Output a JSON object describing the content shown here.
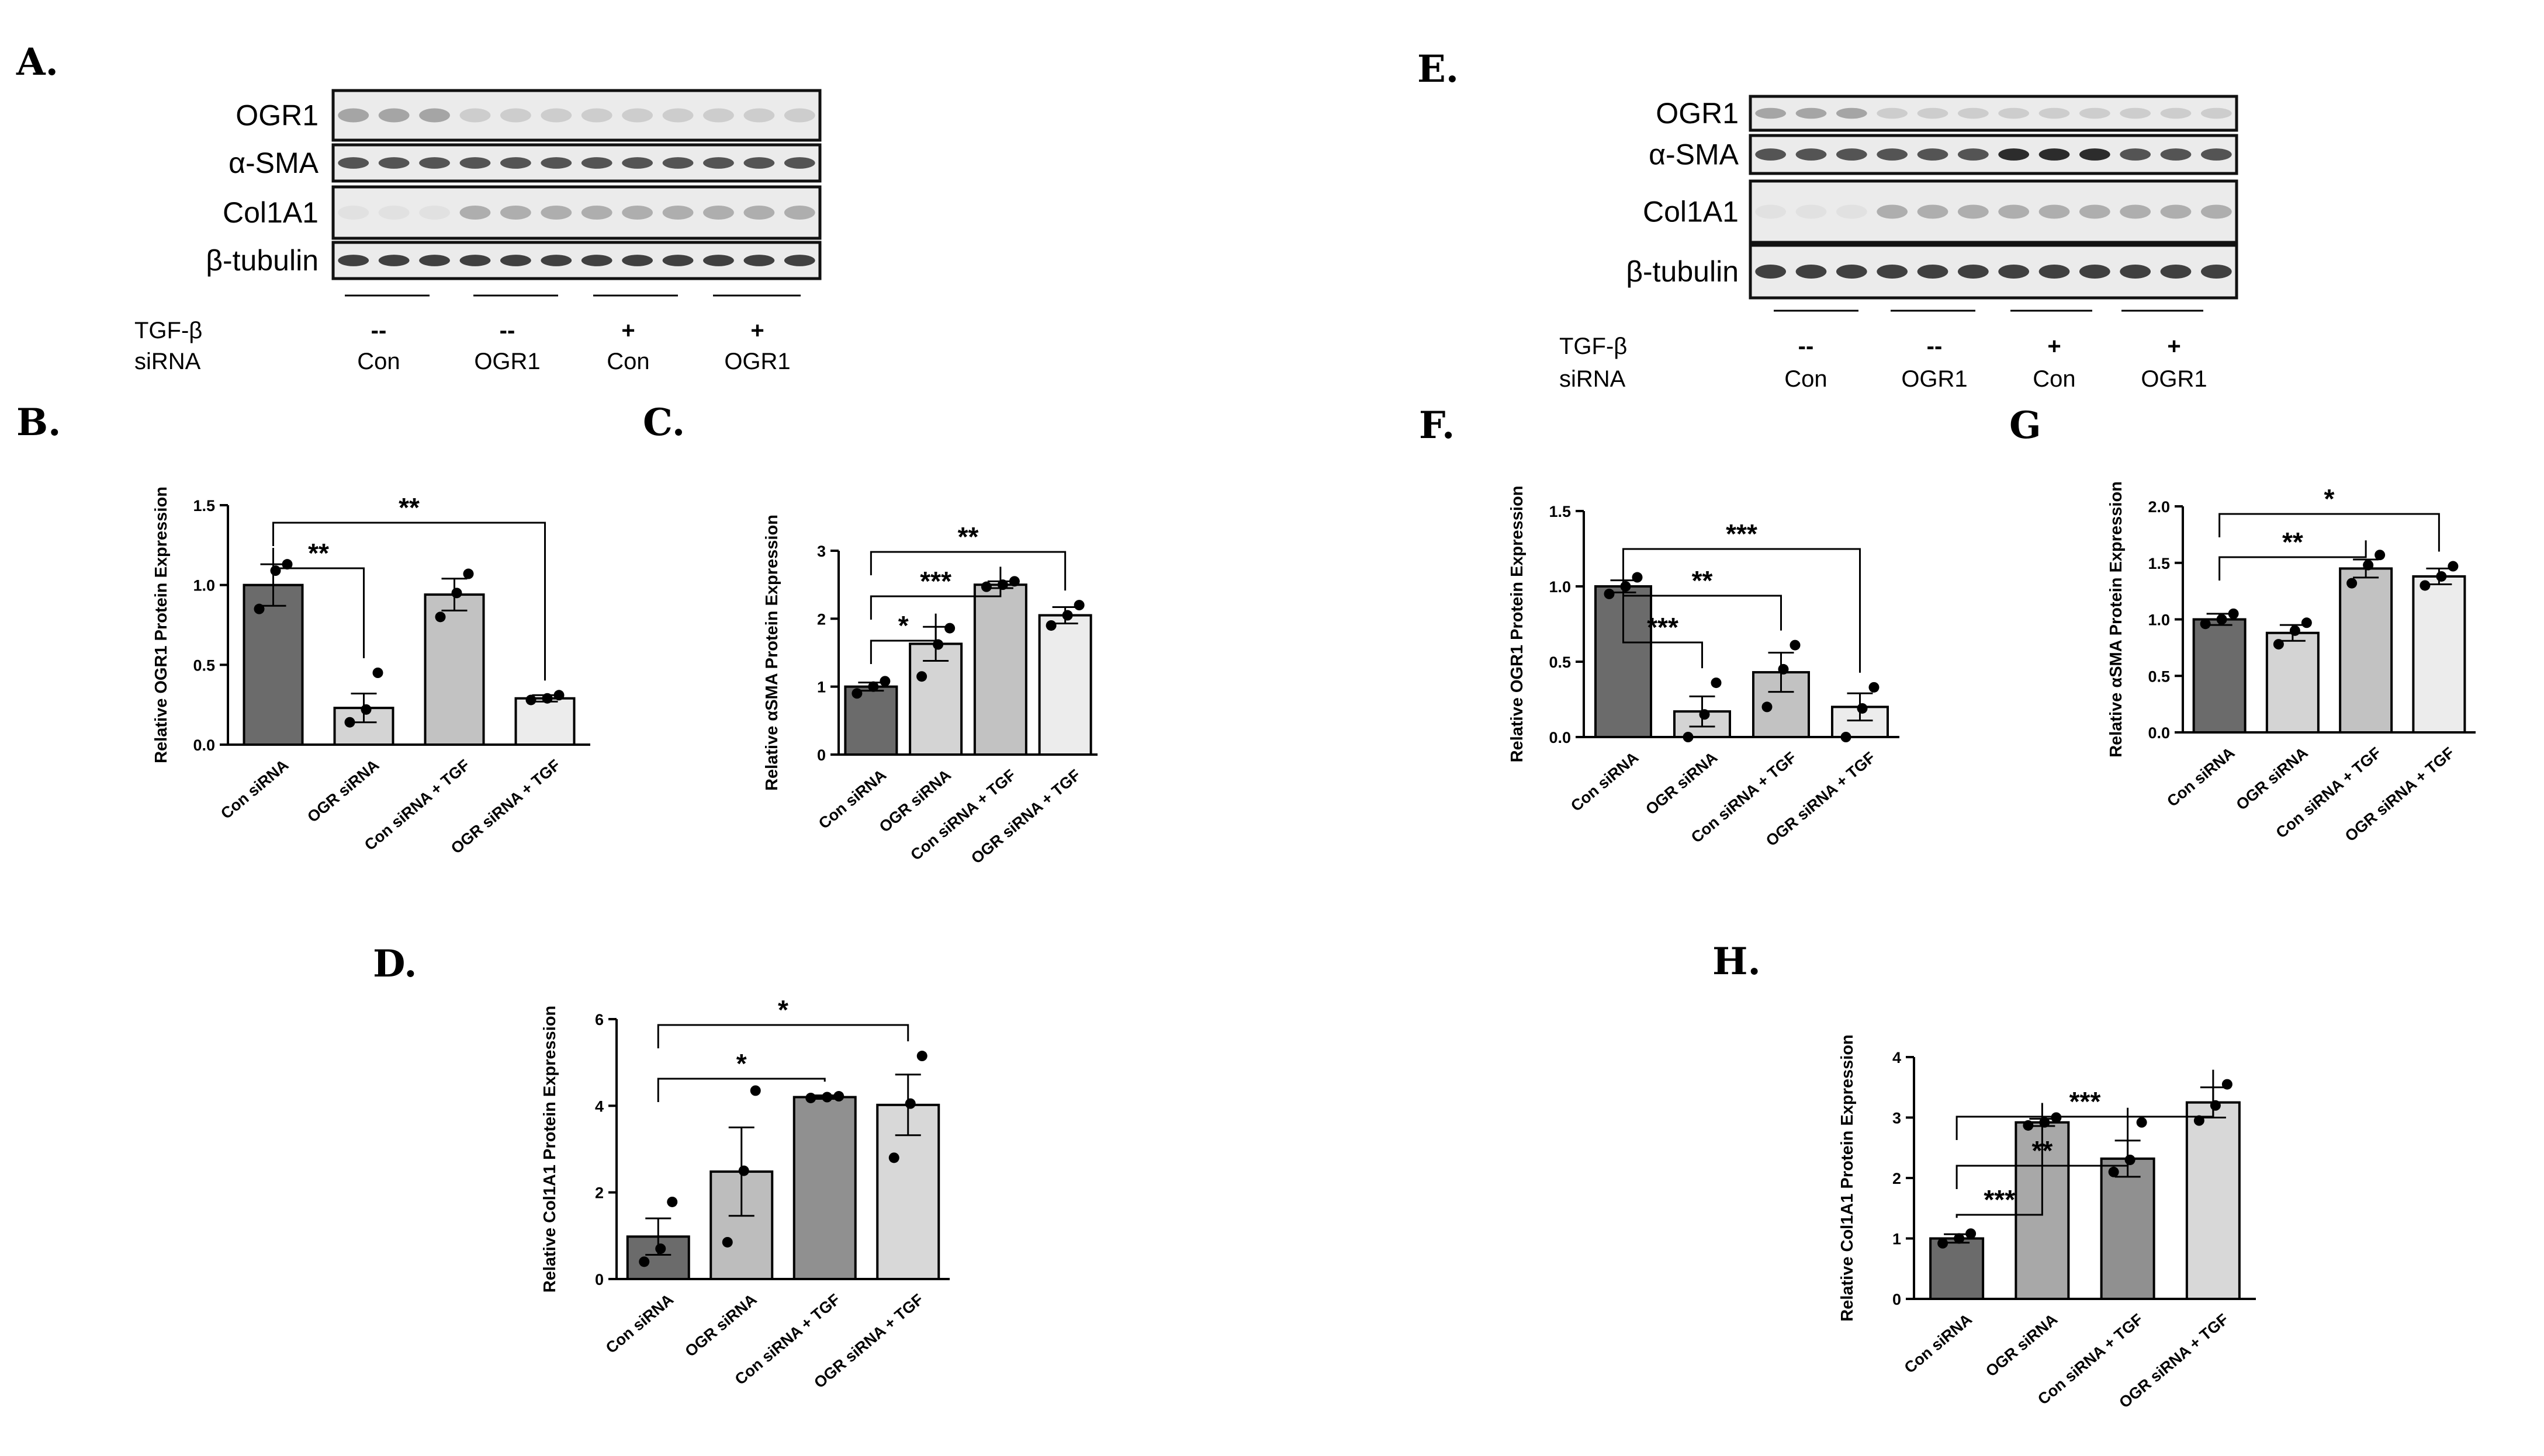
{
  "blots": [
    {
      "panel": "A.",
      "rows": [
        "OGR1",
        "α-SMA",
        "Col1A1",
        "β-tubulin"
      ],
      "condition_labels": [
        "TGF-β",
        "siRNA"
      ],
      "groups": [
        {
          "tgf": "--",
          "sirna": "Con"
        },
        {
          "tgf": "--",
          "sirna": "OGR1"
        },
        {
          "tgf": "+",
          "sirna": "Con"
        },
        {
          "tgf": "+",
          "sirna": "OGR1"
        }
      ]
    },
    {
      "panel": "E.",
      "rows": [
        "OGR1",
        "α-SMA",
        "Col1A1",
        "β-tubulin"
      ],
      "condition_labels": [
        "TGF-β",
        "siRNA"
      ],
      "groups": [
        {
          "tgf": "--",
          "sirna": "Con"
        },
        {
          "tgf": "--",
          "sirna": "OGR1"
        },
        {
          "tgf": "+",
          "sirna": "Con"
        },
        {
          "tgf": "+",
          "sirna": "OGR1"
        }
      ]
    }
  ],
  "chart_data": [
    {
      "panel": "B.",
      "type": "bar",
      "ylabel": "Relative OGR1 Protein Expression",
      "categories": [
        "Con siRNA",
        "OGR siRNA",
        "Con siRNA + TGF",
        "OGR siRNA + TGF"
      ],
      "values": [
        1.0,
        0.23,
        0.94,
        0.29
      ],
      "errors": [
        0.13,
        0.09,
        0.1,
        0.02
      ],
      "points": [
        [
          0.85,
          1.09,
          1.13
        ],
        [
          0.14,
          0.22,
          0.45
        ],
        [
          0.8,
          0.95,
          1.07
        ],
        [
          0.28,
          0.29,
          0.31
        ]
      ],
      "ylim": [
        0,
        1.5
      ],
      "yticks": [
        "0.0",
        "0.5",
        "1.0",
        "1.5"
      ],
      "significance": [
        {
          "from": 0,
          "to": 1,
          "label": "**"
        },
        {
          "from": 0,
          "to": 3,
          "label": "**"
        }
      ],
      "bar_colors": [
        "#6b6b6b",
        "#d4d4d4",
        "#c2c2c2",
        "#ececec"
      ]
    },
    {
      "panel": "C.",
      "type": "bar",
      "ylabel": "Relative αSMA Protein Expression",
      "categories": [
        "Con siRNA",
        "OGR siRNA",
        "Con siRNA + TGF",
        "OGR siRNA + TGF"
      ],
      "values": [
        1.0,
        1.63,
        2.5,
        2.05
      ],
      "errors": [
        0.06,
        0.25,
        0.05,
        0.12
      ],
      "points": [
        [
          0.9,
          1.0,
          1.08
        ],
        [
          1.15,
          1.62,
          1.86
        ],
        [
          2.47,
          2.5,
          2.55
        ],
        [
          1.9,
          2.05,
          2.2
        ]
      ],
      "ylim": [
        0,
        3
      ],
      "yticks": [
        "0",
        "1",
        "2",
        "3"
      ],
      "significance": [
        {
          "from": 0,
          "to": 1,
          "label": "*"
        },
        {
          "from": 0,
          "to": 2,
          "label": "***"
        },
        {
          "from": 0,
          "to": 3,
          "label": "**"
        }
      ],
      "bar_colors": [
        "#6b6b6b",
        "#d4d4d4",
        "#c2c2c2",
        "#ececec"
      ]
    },
    {
      "panel": "D.",
      "type": "bar",
      "ylabel": "Relative Col1A1 Protein Expression",
      "categories": [
        "Con siRNA",
        "OGR siRNA",
        "Con siRNA + TGF",
        "OGR siRNA + TGF"
      ],
      "values": [
        0.98,
        2.48,
        4.2,
        4.02
      ],
      "errors": [
        0.42,
        1.02,
        0.04,
        0.7
      ],
      "points": [
        [
          0.4,
          0.7,
          1.78
        ],
        [
          0.85,
          2.5,
          4.35
        ],
        [
          4.18,
          4.2,
          4.22
        ],
        [
          2.8,
          4.05,
          5.15
        ]
      ],
      "ylim": [
        0,
        6
      ],
      "yticks": [
        "0",
        "2",
        "4",
        "6"
      ],
      "significance": [
        {
          "from": 0,
          "to": 2,
          "label": "*"
        },
        {
          "from": 0,
          "to": 3,
          "label": "*"
        }
      ],
      "bar_colors": [
        "#6b6b6b",
        "#bdbdbd",
        "#909090",
        "#d8d8d8"
      ]
    },
    {
      "panel": "F.",
      "type": "bar",
      "ylabel": "Relative OGR1 Protein Expression",
      "categories": [
        "Con siRNA",
        "OGR siRNA",
        "Con siRNA + TGF",
        "OGR siRNA + TGF"
      ],
      "values": [
        1.0,
        0.17,
        0.43,
        0.2
      ],
      "errors": [
        0.04,
        0.1,
        0.13,
        0.09
      ],
      "points": [
        [
          0.95,
          1.0,
          1.06
        ],
        [
          0.0,
          0.15,
          0.36
        ],
        [
          0.2,
          0.45,
          0.61
        ],
        [
          0.0,
          0.19,
          0.33
        ]
      ],
      "ylim": [
        0,
        1.5
      ],
      "yticks": [
        "0.0",
        "0.5",
        "1.0",
        "1.5"
      ],
      "significance": [
        {
          "from": 0,
          "to": 1,
          "label": "***"
        },
        {
          "from": 0,
          "to": 2,
          "label": "**"
        },
        {
          "from": 0,
          "to": 3,
          "label": "***"
        }
      ],
      "bar_colors": [
        "#6b6b6b",
        "#d4d4d4",
        "#c2c2c2",
        "#ececec"
      ]
    },
    {
      "panel": "G",
      "type": "bar",
      "ylabel": "Relative αSMA Protein Expression",
      "categories": [
        "Con siRNA",
        "OGR siRNA",
        "Con siRNA + TGF",
        "OGR siRNA + TGF"
      ],
      "values": [
        1.0,
        0.88,
        1.45,
        1.38
      ],
      "errors": [
        0.05,
        0.07,
        0.08,
        0.07
      ],
      "points": [
        [
          0.96,
          1.0,
          1.05
        ],
        [
          0.78,
          0.9,
          0.97
        ],
        [
          1.32,
          1.48,
          1.57
        ],
        [
          1.3,
          1.38,
          1.47
        ]
      ],
      "ylim": [
        0,
        2
      ],
      "yticks": [
        "0.0",
        "0.5",
        "1.0",
        "1.5",
        "2.0"
      ],
      "significance": [
        {
          "from": 0,
          "to": 2,
          "label": "**"
        },
        {
          "from": 0,
          "to": 3,
          "label": "*"
        }
      ],
      "bar_colors": [
        "#6b6b6b",
        "#d4d4d4",
        "#c2c2c2",
        "#ececec"
      ]
    },
    {
      "panel": "H.",
      "type": "bar",
      "ylabel": "Relative Col1A1 Protein Expression",
      "categories": [
        "Con siRNA",
        "OGR siRNA",
        "Con siRNA + TGF",
        "OGR siRNA + TGF"
      ],
      "values": [
        1.0,
        2.92,
        2.32,
        3.25
      ],
      "errors": [
        0.07,
        0.06,
        0.3,
        0.25
      ],
      "points": [
        [
          0.92,
          1.0,
          1.08
        ],
        [
          2.87,
          2.92,
          3.0
        ],
        [
          2.1,
          2.3,
          2.92
        ],
        [
          2.95,
          3.2,
          3.55
        ]
      ],
      "ylim": [
        0,
        4
      ],
      "yticks": [
        "0",
        "1",
        "2",
        "3",
        "4"
      ],
      "significance": [
        {
          "from": 0,
          "to": 1,
          "label": "***"
        },
        {
          "from": 0,
          "to": 2,
          "label": "**"
        },
        {
          "from": 0,
          "to": 3,
          "label": "***"
        }
      ],
      "bar_colors": [
        "#6b6b6b",
        "#a8a8a8",
        "#909090",
        "#d8d8d8"
      ]
    }
  ]
}
